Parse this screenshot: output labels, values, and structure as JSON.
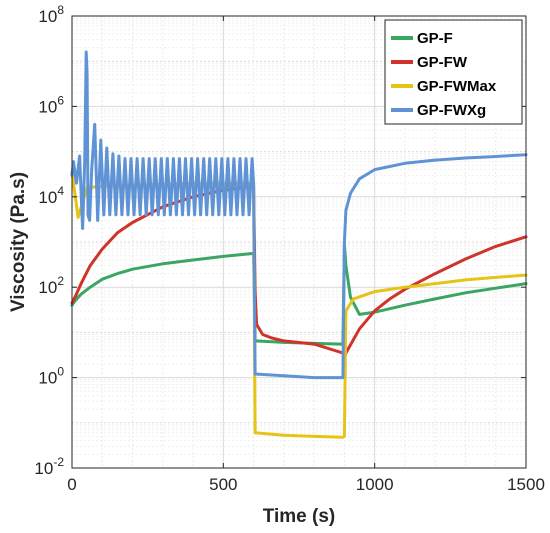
{
  "chart_data": {
    "type": "line",
    "xlabel": "Time (s)",
    "ylabel": "Viscosity (Pa.s)",
    "x_scale": "linear",
    "y_scale": "log",
    "xlim": [
      0,
      1500
    ],
    "ylim": [
      0.01,
      100000000
    ],
    "x_ticks": [
      0,
      500,
      1000,
      1500
    ],
    "x_tick_labels": [
      "0",
      "500",
      "1000",
      "1500"
    ],
    "y_ticks": [
      0.01,
      1,
      100,
      10000,
      1000000,
      100000000
    ],
    "y_tick_labels": [
      {
        "base": "10",
        "exp": "-2"
      },
      {
        "base": "10",
        "exp": "0"
      },
      {
        "base": "10",
        "exp": "2"
      },
      {
        "base": "10",
        "exp": "4"
      },
      {
        "base": "10",
        "exp": "6"
      },
      {
        "base": "10",
        "exp": "8"
      }
    ],
    "grid": true,
    "legend_position": "top-right",
    "series": [
      {
        "name": "GP-F",
        "color": "#3aa661",
        "x": [
          0,
          10,
          30,
          60,
          100,
          150,
          200,
          300,
          400,
          500,
          600,
          605,
          700,
          800,
          895,
          900,
          905,
          920,
          950,
          1000,
          1100,
          1200,
          1300,
          1400,
          1500
        ],
        "y": [
          40,
          50,
          70,
          100,
          150,
          200,
          250,
          330,
          400,
          480,
          560,
          6.5,
          6.0,
          5.7,
          5.5,
          900,
          300,
          60,
          25,
          28,
          40,
          55,
          75,
          95,
          120
        ]
      },
      {
        "name": "GP-FW",
        "color": "#d0332a",
        "x": [
          0,
          10,
          30,
          60,
          100,
          150,
          200,
          300,
          400,
          500,
          600,
          605,
          610,
          630,
          660,
          700,
          800,
          895,
          900,
          905,
          950,
          1000,
          1050,
          1100,
          1200,
          1300,
          1400,
          1500
        ],
        "y": [
          45,
          60,
          120,
          300,
          700,
          1600,
          2700,
          6000,
          10000,
          14000,
          17000,
          80,
          15,
          9,
          7.5,
          6.5,
          5.5,
          3.5,
          2.5,
          3.5,
          12,
          30,
          55,
          90,
          200,
          420,
          800,
          1300
        ]
      },
      {
        "name": "GP-FWMax",
        "color": "#e5c317",
        "x": [
          0,
          20,
          50,
          100,
          200,
          300,
          400,
          500,
          600,
          605,
          700,
          800,
          895,
          900,
          905,
          930,
          1000,
          1100,
          1200,
          1300,
          1400,
          1500
        ],
        "y": [
          35000,
          3500,
          16000,
          17000,
          18000,
          19000,
          20000,
          20000,
          20000,
          0.06,
          0.053,
          0.05,
          0.048,
          0.05,
          30,
          55,
          80,
          100,
          120,
          145,
          165,
          185
        ]
      },
      {
        "name": "GP-FWXg",
        "color": "#5f93d6",
        "x": [
          0,
          5,
          15,
          25,
          35,
          42,
          47,
          50,
          53,
          58,
          65,
          75,
          85,
          95,
          105,
          115,
          125,
          135,
          145,
          155,
          165,
          175,
          185,
          195,
          205,
          215,
          225,
          235,
          245,
          255,
          265,
          275,
          285,
          295,
          305,
          315,
          325,
          335,
          345,
          355,
          365,
          375,
          385,
          395,
          405,
          415,
          425,
          435,
          445,
          455,
          465,
          475,
          485,
          495,
          505,
          515,
          525,
          535,
          545,
          555,
          565,
          575,
          585,
          595,
          600,
          605,
          700,
          800,
          895,
          900,
          905,
          920,
          950,
          1000,
          1100,
          1200,
          1300,
          1400,
          1500
        ],
        "y": [
          30000,
          60000,
          20000,
          80000,
          2000,
          60000,
          16000000,
          5000000,
          4000,
          3000,
          40000,
          400000,
          3000,
          180000,
          4000,
          120000,
          4000,
          90000,
          4000,
          80000,
          4000,
          70000,
          4000,
          70000,
          4000,
          70000,
          4000,
          70000,
          4000,
          70000,
          4000,
          70000,
          4000,
          70000,
          4000,
          70000,
          4000,
          70000,
          4000,
          70000,
          4000,
          70000,
          4000,
          70000,
          4000,
          70000,
          4000,
          70000,
          4000,
          70000,
          4000,
          70000,
          4000,
          70000,
          4000,
          70000,
          4000,
          70000,
          4000,
          70000,
          4000,
          70000,
          4000,
          70000,
          20000,
          1.2,
          1.1,
          1.0,
          1.0,
          1000,
          5000,
          12000,
          25000,
          40000,
          55000,
          65000,
          72000,
          78000,
          85000
        ]
      }
    ]
  }
}
